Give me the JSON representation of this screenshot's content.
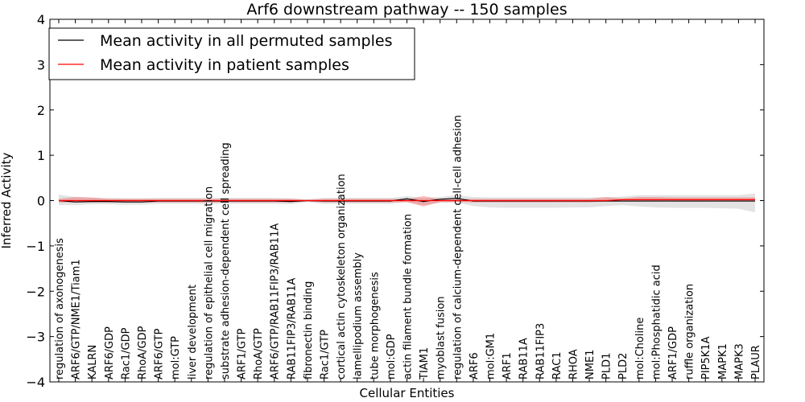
{
  "chart_data": {
    "type": "line",
    "title": "Arf6 downstream pathway -- 150 samples",
    "xlabel": "Cellular Entities",
    "ylabel": "Inferred Activity",
    "ylim": [
      -4,
      4
    ],
    "yticks": [
      4,
      3,
      2,
      1,
      0,
      -1,
      -2,
      -3,
      -4
    ],
    "ytick_labels": [
      "4",
      "3",
      "2",
      "1",
      "0",
      "−1",
      "−2",
      "−3",
      "−4"
    ],
    "grid": false,
    "legend_position": "top-left",
    "categories": [
      "regulation of axonogenesis",
      "ARF6/GTP/NME1/Tiam1",
      "KALRN",
      "ARF6/GDP",
      "Rac1/GDP",
      "RhoA/GDP",
      "ARF6/GTP",
      "mol:GTP",
      "liver development",
      "regulation of epithelial cell migration",
      "substrate adhesion-dependent cell spreading",
      "ARF1/GTP",
      "RhoA/GTP",
      "ARF6/GTP/RAB11FIP3/RAB11A",
      "RAB11FIP3/RAB11A",
      "fibronectin binding",
      "Rac1/GTP",
      "cortical actin cytoskeleton organization",
      "lamellipodium assembly",
      "tube morphogenesis",
      "mol:GDP",
      "actin filament bundle formation",
      "TIAM1",
      "myoblast fusion",
      "regulation of calcium-dependent cell-cell adhesion",
      "ARF6",
      "mol:GM1",
      "ARF1",
      "RAB11A",
      "RAB11FIP3",
      "RAC1",
      "RHOA",
      "NME1",
      "PLD1",
      "PLD2",
      "mol:Choline",
      "mol:Phosphatidic acid",
      "ARF1/GDP",
      "ruffle organization",
      "PIP5K1A",
      "MAPK1",
      "MAPK3",
      "PLAUR"
    ],
    "series": [
      {
        "name": "Mean activity in all permuted samples",
        "color": "#000000",
        "band_color": "#999999",
        "values": [
          0.0,
          -0.03,
          -0.02,
          -0.02,
          -0.03,
          -0.03,
          -0.01,
          -0.01,
          -0.01,
          -0.01,
          -0.01,
          -0.01,
          -0.01,
          -0.01,
          -0.02,
          0.0,
          -0.01,
          -0.01,
          -0.01,
          -0.01,
          -0.01,
          0.04,
          -0.02,
          0.03,
          0.05,
          -0.01,
          -0.01,
          -0.01,
          -0.01,
          -0.01,
          -0.01,
          -0.01,
          -0.01,
          -0.01,
          -0.01,
          -0.01,
          -0.01,
          -0.01,
          -0.01,
          -0.01,
          -0.01,
          -0.01,
          -0.01
        ],
        "band_upper": [
          0.13,
          0.08,
          0.06,
          0.06,
          0.05,
          0.05,
          0.06,
          0.06,
          0.06,
          0.06,
          0.06,
          0.06,
          0.06,
          0.06,
          0.05,
          0.03,
          0.06,
          0.06,
          0.06,
          0.06,
          0.06,
          0.1,
          0.06,
          0.08,
          0.12,
          0.08,
          0.07,
          0.07,
          0.07,
          0.07,
          0.07,
          0.07,
          0.07,
          0.07,
          0.09,
          0.12,
          0.12,
          0.12,
          0.12,
          0.12,
          0.12,
          0.12,
          0.16
        ],
        "band_lower": [
          -0.1,
          -0.1,
          -0.08,
          -0.08,
          -0.09,
          -0.09,
          -0.07,
          -0.07,
          -0.07,
          -0.07,
          -0.07,
          -0.07,
          -0.07,
          -0.07,
          -0.08,
          -0.03,
          -0.07,
          -0.07,
          -0.07,
          -0.07,
          -0.07,
          -0.04,
          -0.1,
          -0.05,
          -0.04,
          -0.12,
          -0.15,
          -0.16,
          -0.16,
          -0.16,
          -0.16,
          -0.15,
          -0.15,
          -0.12,
          -0.1,
          -0.13,
          -0.15,
          -0.16,
          -0.16,
          -0.16,
          -0.17,
          -0.18,
          -0.26
        ]
      },
      {
        "name": "Mean activity in patient samples",
        "color": "#ff0000",
        "band_color": "#ff0000",
        "values": [
          0.0,
          0.0,
          0.0,
          0.0,
          0.0,
          0.0,
          0.0,
          0.0,
          0.0,
          0.0,
          0.0,
          0.0,
          0.0,
          0.0,
          0.0,
          0.0,
          0.0,
          0.0,
          0.0,
          0.0,
          0.0,
          0.0,
          0.0,
          0.0,
          0.0,
          0.0,
          0.0,
          0.0,
          0.0,
          0.0,
          0.0,
          0.0,
          0.0,
          0.0,
          0.02,
          0.02,
          0.02,
          0.02,
          0.02,
          0.02,
          0.02,
          0.02,
          0.02
        ],
        "band_upper": [
          0.04,
          0.08,
          0.07,
          0.04,
          0.04,
          0.04,
          0.04,
          0.04,
          0.04,
          0.04,
          0.04,
          0.04,
          0.04,
          0.04,
          0.04,
          0.02,
          0.04,
          0.04,
          0.04,
          0.04,
          0.04,
          0.03,
          0.1,
          0.03,
          0.03,
          0.04,
          0.04,
          0.04,
          0.04,
          0.04,
          0.04,
          0.04,
          0.04,
          0.08,
          0.05,
          0.08,
          0.08,
          0.07,
          0.07,
          0.07,
          0.07,
          0.07,
          0.07
        ],
        "band_lower": [
          -0.04,
          -0.04,
          -0.04,
          -0.04,
          -0.04,
          -0.04,
          -0.04,
          -0.04,
          -0.04,
          -0.04,
          -0.04,
          -0.04,
          -0.04,
          -0.04,
          -0.04,
          -0.02,
          -0.04,
          -0.04,
          -0.04,
          -0.04,
          -0.04,
          -0.03,
          -0.13,
          -0.03,
          -0.03,
          -0.04,
          -0.04,
          -0.04,
          -0.04,
          -0.04,
          -0.04,
          -0.04,
          -0.04,
          -0.02,
          -0.02,
          -0.02,
          -0.02,
          -0.02,
          -0.02,
          -0.02,
          -0.02,
          -0.02,
          -0.02
        ]
      }
    ]
  }
}
